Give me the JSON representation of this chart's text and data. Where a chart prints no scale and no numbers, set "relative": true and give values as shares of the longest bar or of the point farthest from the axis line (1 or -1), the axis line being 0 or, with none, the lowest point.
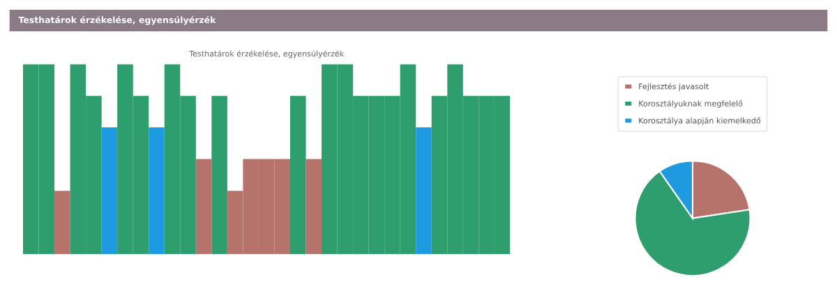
{
  "chart_data": [
    {
      "type": "bar",
      "title": "Testhatárok érzékelése, egyensúlyérzék",
      "subtitle": "Testhatárok érzékelése, egyensúlyérzék",
      "relative": true,
      "categories": [
        null,
        null,
        null,
        null,
        null,
        null,
        null,
        null,
        null,
        null,
        null,
        null,
        null,
        null,
        null,
        null,
        null,
        null,
        null,
        null,
        null,
        null,
        null,
        null,
        null,
        null,
        null,
        null,
        null,
        null,
        null
      ],
      "values": [
        1,
        1,
        0.333,
        1,
        0.833,
        0.667,
        1,
        0.833,
        0.667,
        1,
        0.833,
        0.5,
        0.833,
        0.333,
        0.5,
        0.5,
        0.5,
        0.833,
        0.5,
        1,
        1,
        0.833,
        0.833,
        0.833,
        1,
        0.667,
        0.833,
        1,
        0.833,
        0.833,
        0.833
      ],
      "colors": [
        "#2e9e6e",
        "#2e9e6e",
        "#b5736b",
        "#2e9e6e",
        "#2e9e6e",
        "#1e9be0",
        "#2e9e6e",
        "#2e9e6e",
        "#1e9be0",
        "#2e9e6e",
        "#2e9e6e",
        "#b5736b",
        "#2e9e6e",
        "#b5736b",
        "#b5736b",
        "#b5736b",
        "#b5736b",
        "#2e9e6e",
        "#b5736b",
        "#2e9e6e",
        "#2e9e6e",
        "#2e9e6e",
        "#2e9e6e",
        "#2e9e6e",
        "#2e9e6e",
        "#1e9be0",
        "#2e9e6e",
        "#2e9e6e",
        "#2e9e6e",
        "#2e9e6e",
        "#2e9e6e"
      ]
    },
    {
      "type": "pie",
      "legend": "top",
      "categories": [
        "Fejlesztés javasolt",
        "Korosztályuknak megfelelő",
        "Korosztálya alapján kiemelkedő"
      ],
      "values": [
        22.6,
        67.7,
        9.7
      ],
      "colors": [
        "#b5736b",
        "#2e9e6e",
        "#1e9be0"
      ]
    }
  ]
}
